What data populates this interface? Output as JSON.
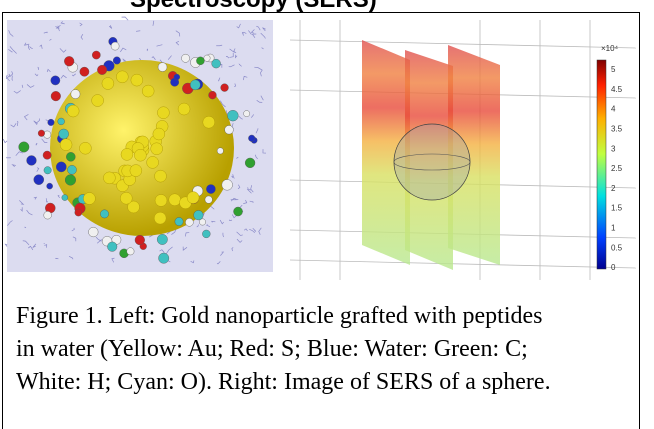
{
  "header": {
    "title": "Spectroscopy (SERS)"
  },
  "figure": {
    "colorbar": {
      "exponent": "×10⁴",
      "ticks": [
        "5",
        "4.5",
        "4",
        "3.5",
        "3",
        "2.5",
        "2",
        "1.5",
        "1",
        "0.5",
        "0"
      ]
    },
    "caption": [
      "Figure 1. Left: Gold nanoparticle grafted with peptides",
      "in water (Yellow: Au; Red: S; Blue: Water: Green: C;",
      "White: H; Cyan: O). Right: Image of SERS of a sphere."
    ]
  }
}
